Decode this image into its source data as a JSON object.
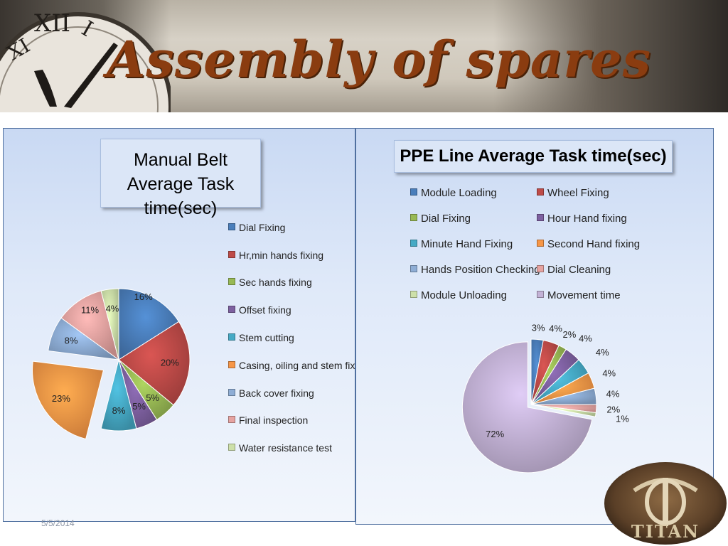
{
  "slide": {
    "title": "Assembly of spares",
    "footer_date": "5/5/2014",
    "logo_text": "TITAN"
  },
  "chart_data": [
    {
      "type": "pie",
      "title": "Manual Belt Average Task time(sec)",
      "title_lines": [
        "Manual Belt",
        "Average Task time(sec)"
      ],
      "exploded_slice": "Casing, oiling and stem fixing",
      "slices": [
        {
          "label": "Dial Fixing",
          "value": 16,
          "display": "16%",
          "color": "#4a7ebb"
        },
        {
          "label": "Hr,min hands fixing",
          "value": 20,
          "display": "20%",
          "color": "#be4b48"
        },
        {
          "label": "Sec hands fixing",
          "value": 5,
          "display": "5%",
          "color": "#98b954"
        },
        {
          "label": "Offset fixing",
          "value": 5,
          "display": "5%",
          "color": "#7d60a0"
        },
        {
          "label": "Stem cutting",
          "value": 8,
          "display": "8%",
          "color": "#46aac5"
        },
        {
          "label": "Casing, oiling and stem fixing",
          "value": 23,
          "display": "23%",
          "color": "#f79646"
        },
        {
          "label": "Back cover fixing",
          "value": 8,
          "display": "8%",
          "color": "#8eadd5"
        },
        {
          "label": "Final inspection",
          "value": 11,
          "display": "11%",
          "color": "#e6a3a1"
        },
        {
          "label": "Water resistance test",
          "value": 4,
          "display": "4%",
          "color": "#cde0a9"
        }
      ]
    },
    {
      "type": "pie",
      "title": "PPE Line Average Task time(sec)",
      "exploded_slice": "Movement time",
      "slices": [
        {
          "label": "Module Loading",
          "value": 3,
          "display": "3%",
          "color": "#4a7ebb"
        },
        {
          "label": "Wheel Fixing",
          "value": 4,
          "display": "4%",
          "color": "#be4b48"
        },
        {
          "label": "Dial Fixing",
          "value": 2,
          "display": "2%",
          "color": "#98b954"
        },
        {
          "label": "Hour Hand fixing",
          "value": 4,
          "display": "4%",
          "color": "#7d60a0"
        },
        {
          "label": "Minute Hand Fixing",
          "value": 4,
          "display": "4%",
          "color": "#46aac5"
        },
        {
          "label": "Second Hand fixing",
          "value": 4,
          "display": "4%",
          "color": "#f79646"
        },
        {
          "label": "Hands Position Checking",
          "value": 4,
          "display": "4%",
          "color": "#8eadd5"
        },
        {
          "label": "Dial Cleaning",
          "value": 2,
          "display": "2%",
          "color": "#e6a3a1"
        },
        {
          "label": "Module Unloading",
          "value": 1,
          "display": "1%",
          "color": "#cde0a9"
        },
        {
          "label": "Movement time",
          "value": 72,
          "display": "72%",
          "color": "#c3b2d6"
        }
      ]
    }
  ]
}
